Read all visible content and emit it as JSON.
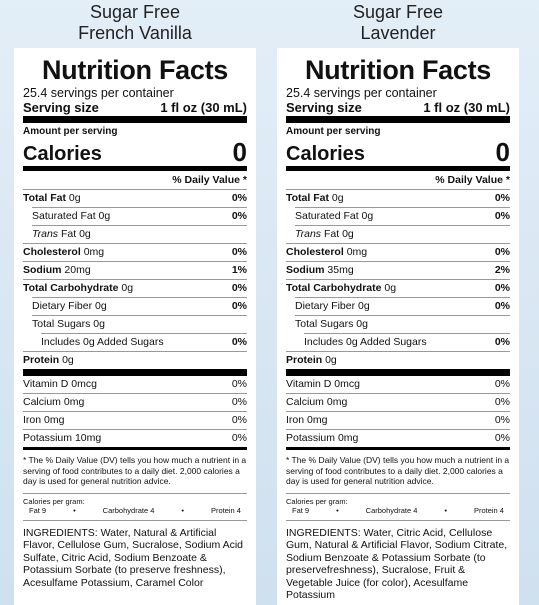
{
  "labels": [
    {
      "product": [
        "Sugar Free",
        "French Vanilla"
      ],
      "heading": "Nutrition Facts",
      "servings": "25.4 servings per container",
      "serving_size_label": "Serving size",
      "serving_size": "1 fl oz (30 mL)",
      "amount_per_serving": "Amount per serving",
      "calories_label": "Calories",
      "calories": "0",
      "dv_header": "% Daily Value *",
      "nutrients": [
        {
          "name": "Total Fat",
          "amount": "0g",
          "dv": "0%",
          "bold": true,
          "indent": 0
        },
        {
          "name": "Saturated Fat",
          "amount": "0g",
          "dv": "0%",
          "bold": false,
          "indent": 1
        },
        {
          "name_italic": "Trans",
          "name": "Fat",
          "amount": "0g",
          "bold": false,
          "indent": 1
        },
        {
          "name": "Cholesterol",
          "amount": "0mg",
          "dv": "0%",
          "bold": true,
          "indent": 0
        },
        {
          "name": "Sodium",
          "amount": "20mg",
          "dv": "1%",
          "bold": true,
          "indent": 0
        },
        {
          "name": "Total Carbohydrate",
          "amount": "0g",
          "dv": "0%",
          "bold": true,
          "indent": 0
        },
        {
          "name": "Dietary Fiber",
          "amount": "0g",
          "dv": "0%",
          "bold": false,
          "indent": 1
        },
        {
          "name": "Total Sugars",
          "amount": "0g",
          "bold": false,
          "indent": 1
        },
        {
          "name": "Includes 0g Added Sugars",
          "dv": "0%",
          "bold": false,
          "indent": 2
        },
        {
          "name": "Protein",
          "amount": "0g",
          "bold": true,
          "indent": 0
        }
      ],
      "vitamins": [
        {
          "name": "Vitamin D",
          "amount": "0mcg",
          "dv": "0%"
        },
        {
          "name": "Calcium",
          "amount": "0mg",
          "dv": "0%"
        },
        {
          "name": "Iron",
          "amount": "0mg",
          "dv": "0%"
        },
        {
          "name": "Potassium",
          "amount": "10mg",
          "dv": "0%"
        }
      ],
      "footnote": "* The % Daily Value (DV) tells you how much a nutrient in a serving of food contributes to a daily diet. 2,000 calories a day is used for general nutrition advice.",
      "calories_per_gram": {
        "label": "Calories per gram:",
        "items": [
          "Fat 9",
          "•",
          "Carbohydrate 4",
          "•",
          "Protein 4"
        ]
      },
      "ingredients": "INGREDIENTS: Water, Natural & Artificial Flavor, Cellulose Gum, Sucralose, Sodium Acid Sulfate, Citric Acid, Sodium Benzoate & Potassium Sorbate (to preserve freshness), Acesulfame Potassium, Caramel Color"
    },
    {
      "product": [
        "Sugar Free",
        "Lavender"
      ],
      "heading": "Nutrition Facts",
      "servings": "25.4 servings per container",
      "serving_size_label": "Serving size",
      "serving_size": "1 fl oz (30 mL)",
      "amount_per_serving": "Amount per serving",
      "calories_label": "Calories",
      "calories": "0",
      "dv_header": "% Daily Value *",
      "nutrients": [
        {
          "name": "Total Fat",
          "amount": "0g",
          "dv": "0%",
          "bold": true,
          "indent": 0
        },
        {
          "name": "Saturated Fat",
          "amount": "0g",
          "dv": "0%",
          "bold": false,
          "indent": 1
        },
        {
          "name_italic": "Trans",
          "name": "Fat",
          "amount": "0g",
          "bold": false,
          "indent": 1
        },
        {
          "name": "Cholesterol",
          "amount": "0mg",
          "dv": "0%",
          "bold": true,
          "indent": 0
        },
        {
          "name": "Sodium",
          "amount": "35mg",
          "dv": "2%",
          "bold": true,
          "indent": 0
        },
        {
          "name": "Total Carbohydrate",
          "amount": "0g",
          "dv": "0%",
          "bold": true,
          "indent": 0
        },
        {
          "name": "Dietary Fiber",
          "amount": "0g",
          "dv": "0%",
          "bold": false,
          "indent": 1
        },
        {
          "name": "Total Sugars",
          "amount": "0g",
          "bold": false,
          "indent": 1
        },
        {
          "name": "Includes 0g Added Sugars",
          "dv": "0%",
          "bold": false,
          "indent": 2
        },
        {
          "name": "Protein",
          "amount": "0g",
          "bold": true,
          "indent": 0
        }
      ],
      "vitamins": [
        {
          "name": "Vitamin D",
          "amount": "0mcg",
          "dv": "0%"
        },
        {
          "name": "Calcium",
          "amount": "0mg",
          "dv": "0%"
        },
        {
          "name": "Iron",
          "amount": "0mg",
          "dv": "0%"
        },
        {
          "name": "Potassium",
          "amount": "0mg",
          "dv": "0%"
        }
      ],
      "footnote": "* The % Daily Value (DV) tells you how much a nutrient in a serving of food contributes to a daily diet. 2,000 calories a day is used for general nutrition advice.",
      "calories_per_gram": {
        "label": "Calories per gram:",
        "items": [
          "Fat 9",
          "•",
          "Carbohydrate 4",
          "•",
          "Protein 4"
        ]
      },
      "ingredients": "INGREDIENTS: Water, Citric Acid, Cellulose Gum, Natural & Artificial Flavor, Sodium Citrate, Sodium Benzoate & Potassium Sorbate (to preservefreshness), Sucralose, Fruit & Vegetable Juice (for color), Acesulfame Potassium"
    }
  ]
}
